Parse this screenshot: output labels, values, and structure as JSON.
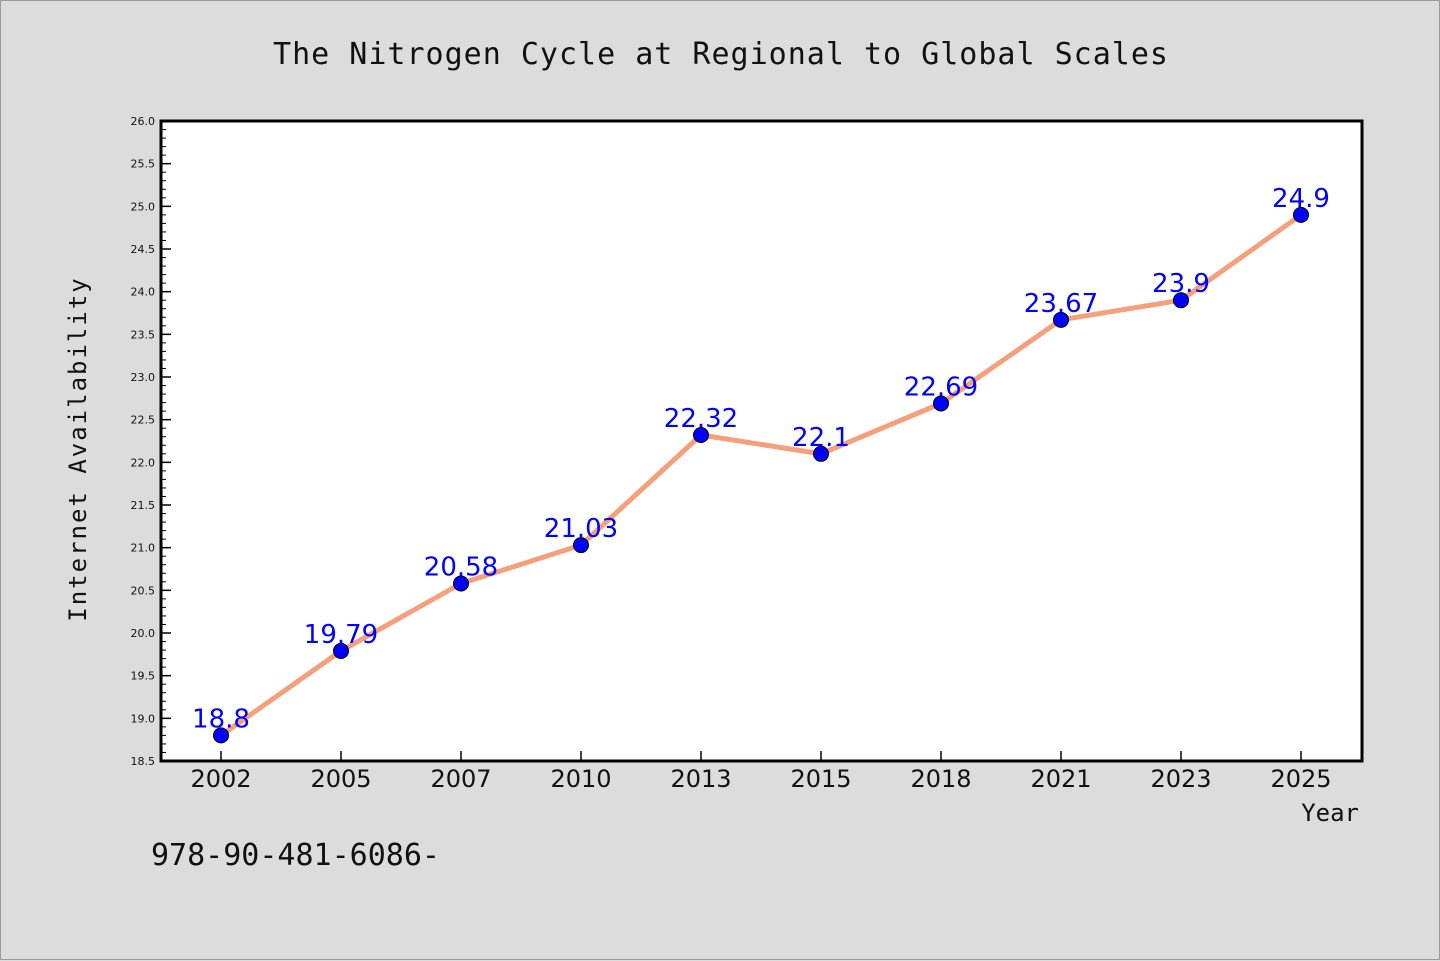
{
  "chart_data": {
    "type": "line",
    "title": "The Nitrogen Cycle at Regional to Global Scales",
    "xlabel": "Year",
    "ylabel": "Internet Availability",
    "categories": [
      "2002",
      "2005",
      "2007",
      "2010",
      "2013",
      "2015",
      "2018",
      "2021",
      "2023",
      "2025"
    ],
    "series": [
      {
        "values": [
          18.8,
          19.79,
          20.58,
          21.03,
          22.32,
          22.1,
          22.69,
          23.67,
          23.9,
          24.9
        ],
        "labels": [
          "18.8",
          "19.79",
          "20.58",
          "21.03",
          "22.32",
          "22.1",
          "22.69",
          "23.67",
          "23.9",
          "24.9"
        ]
      }
    ],
    "ylim": [
      18.5,
      26.0
    ],
    "yticks": [
      "18.5",
      "19.0",
      "19.5",
      "20.0",
      "20.5",
      "21.0",
      "21.5",
      "22.0",
      "22.5",
      "23.0",
      "23.5",
      "24.0",
      "24.5",
      "25.0",
      "25.5",
      "26.0"
    ],
    "grid": false,
    "legend": "none",
    "colors": {
      "line": "#f4a07c",
      "marker": "#0000ff",
      "label": "#0000ff",
      "background": "#dcdcdc",
      "plot_background": "#ffffff"
    }
  },
  "footer": {
    "isbn": "978-90-481-6086-"
  }
}
